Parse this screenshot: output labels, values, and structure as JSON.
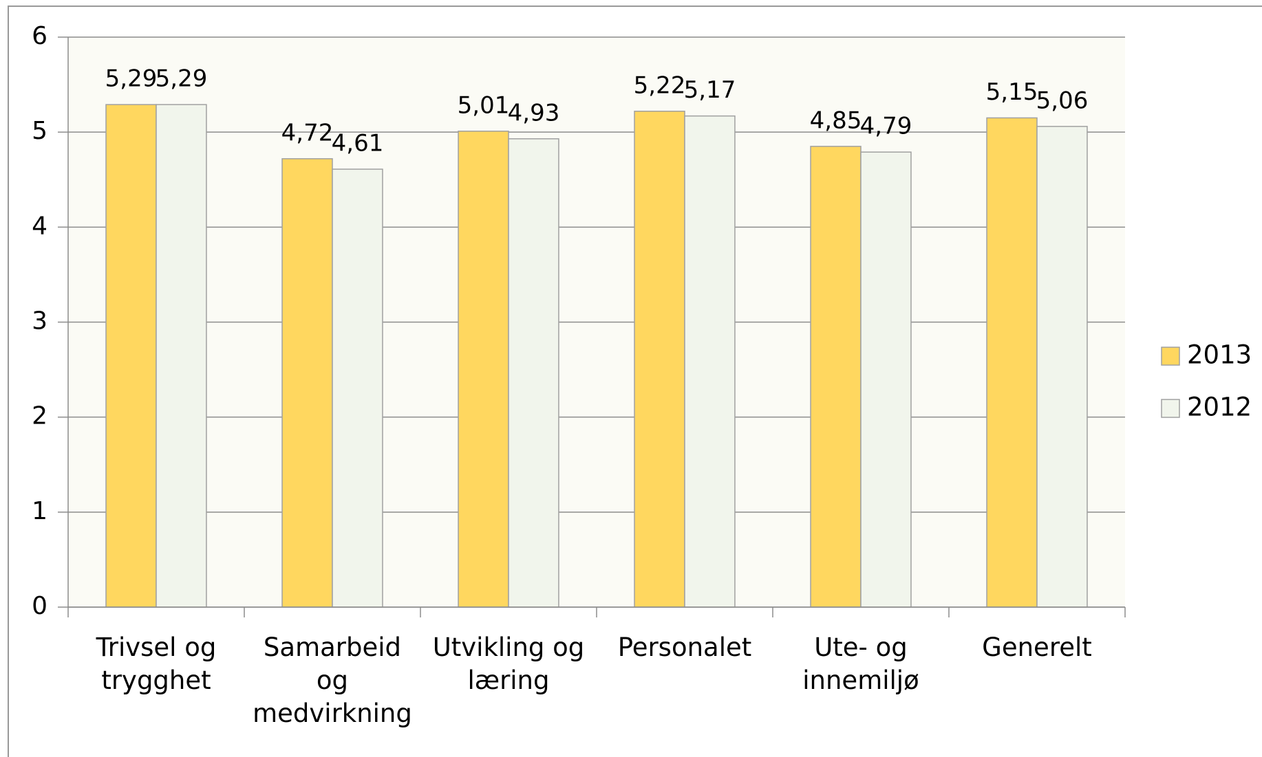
{
  "chart_data": {
    "type": "bar",
    "categories": [
      "Trivsel og trygghet",
      "Samarbeid og medvirkning",
      "Utvikling og læring",
      "Personalet",
      "Ute- og innemiljø",
      "Generelt"
    ],
    "series": [
      {
        "name": "2013",
        "color": "#ffd75f",
        "values": [
          5.29,
          4.72,
          5.01,
          5.22,
          4.85,
          5.15
        ],
        "value_labels": [
          "5,29",
          "4,72",
          "5,01",
          "5,22",
          "4,85",
          "5,15"
        ]
      },
      {
        "name": "2012",
        "color": "#f1f5ec",
        "values": [
          5.29,
          4.61,
          4.93,
          5.17,
          4.79,
          5.06
        ],
        "value_labels": [
          "5,29",
          "4,61",
          "4,93",
          "5,17",
          "4,79",
          "5,06"
        ]
      }
    ],
    "ylim": [
      0,
      6
    ],
    "yticks": [
      0,
      1,
      2,
      3,
      4,
      5,
      6
    ],
    "grid": true,
    "legend": "right"
  }
}
